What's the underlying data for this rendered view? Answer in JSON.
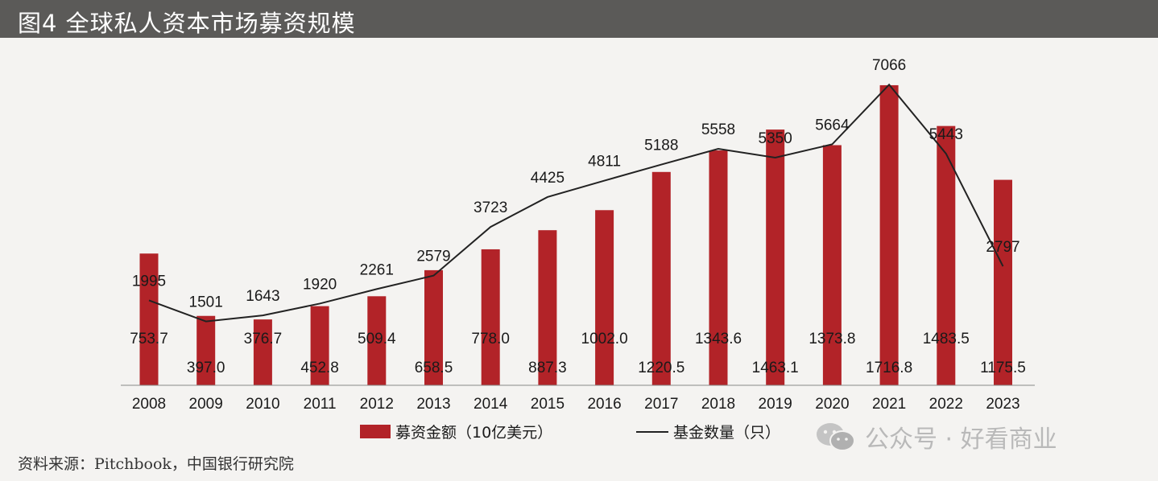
{
  "header": {
    "title": "图4  全球私人资本市场募资规模"
  },
  "footer": {
    "source": "资料来源：Pitchbook，中国银行研究院"
  },
  "watermark": {
    "text": "公众号 · 好看商业",
    "icon": "wechat-icon"
  },
  "colors": {
    "bar": "#b22328",
    "line": "#222222",
    "background": "#f4f3f1",
    "title_bg": "#5b5a58"
  },
  "chart_data": {
    "type": "bar",
    "title": "图4  全球私人资本市场募资规模",
    "categories": [
      "2008",
      "2009",
      "2010",
      "2011",
      "2012",
      "2013",
      "2014",
      "2015",
      "2016",
      "2017",
      "2018",
      "2019",
      "2020",
      "2021",
      "2022",
      "2023"
    ],
    "series": [
      {
        "name": "募资金额（10亿美元）",
        "type": "bar",
        "values": [
          753.7,
          397.0,
          376.7,
          452.8,
          509.4,
          658.5,
          778.0,
          887.3,
          1002.0,
          1220.5,
          1343.6,
          1463.1,
          1373.8,
          1716.8,
          1483.5,
          1175.5
        ],
        "labels": [
          "753.7",
          "397.0",
          "376.7",
          "452.8",
          "509.4",
          "658.5",
          "778.0",
          "887.3",
          "1002.0",
          "1220.5",
          "1343.6",
          "1463.1",
          "1373.8",
          "1716.8",
          "1483.5",
          "1175.5"
        ]
      },
      {
        "name": "基金数量（只）",
        "type": "line",
        "values": [
          1995,
          1501,
          1643,
          1920,
          2261,
          2579,
          3723,
          4425,
          4811,
          5188,
          5558,
          5350,
          5664,
          7066,
          5443,
          2797
        ],
        "labels": [
          "1995",
          "1501",
          "1643",
          "1920",
          "2261",
          "2579",
          "3723",
          "4425",
          "4811",
          "5188",
          "5558",
          "5350",
          "5664",
          "7066",
          "5443",
          "2797"
        ]
      }
    ],
    "ylim_bar": [
      0,
      1850
    ],
    "ylim_line": [
      0,
      7600
    ],
    "legend": {
      "position": "bottom",
      "bar_label": "募资金额（10亿美元）",
      "line_label": "基金数量（只）"
    }
  }
}
